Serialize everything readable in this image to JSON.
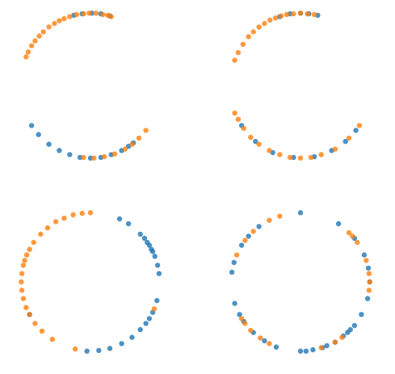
{
  "colors": {
    "blue": "#1f77b4",
    "orange": "#ff7f0e"
  },
  "chart_data": [
    {
      "type": "scatter",
      "panel": "top-left",
      "xlim": [
        -1.05,
        1.05
      ],
      "ylim": [
        -1.05,
        1.05
      ],
      "grid": false,
      "axes": "hidden",
      "series": [
        {
          "color": "blue",
          "x": [
            -0.24,
            -0.12,
            0.02,
            0.15,
            0.28
          ],
          "y": [
            0.97,
            0.99,
            1.0,
            0.99,
            0.96
          ]
        },
        {
          "color": "orange",
          "x": [
            -0.93,
            -0.9,
            -0.85,
            -0.8,
            -0.74,
            -0.68,
            -0.6,
            -0.52,
            -0.45,
            -0.38,
            -0.3,
            -0.2,
            -0.1,
            -0.02,
            0.08,
            0.18,
            0.25,
            0.3
          ],
          "y": [
            0.37,
            0.44,
            0.53,
            0.6,
            0.67,
            0.73,
            0.8,
            0.85,
            0.89,
            0.92,
            0.95,
            0.98,
            0.99,
            1.0,
            1.0,
            0.98,
            0.97,
            0.95
          ]
        }
      ]
    },
    {
      "type": "scatter",
      "panel": "top-right",
      "xlim": [
        -1.05,
        1.05
      ],
      "ylim": [
        -1.05,
        1.05
      ],
      "grid": false,
      "axes": "hidden",
      "series": [
        {
          "color": "blue",
          "x": [
            -0.3,
            -0.15,
            0.0,
            0.12,
            0.25
          ],
          "y": [
            0.95,
            0.99,
            1.0,
            0.99,
            0.97
          ]
        },
        {
          "color": "orange",
          "x": [
            -0.95,
            -0.9,
            -0.83,
            -0.75,
            -0.68,
            -0.6,
            -0.52,
            -0.44,
            -0.36,
            -0.28,
            -0.2,
            -0.1,
            0.0,
            0.1,
            0.2
          ],
          "y": [
            0.32,
            0.43,
            0.55,
            0.66,
            0.73,
            0.8,
            0.85,
            0.9,
            0.93,
            0.96,
            0.98,
            0.99,
            1.0,
            0.99,
            0.98
          ]
        }
      ]
    },
    {
      "type": "scatter",
      "panel": "middle-left",
      "xlim": [
        -1.05,
        1.05
      ],
      "ylim": [
        -1.05,
        1.05
      ],
      "grid": false,
      "axes": "hidden",
      "series": [
        {
          "color": "blue",
          "x": [
            -0.85,
            -0.75,
            -0.6,
            -0.45,
            -0.3,
            -0.15,
            0.0,
            0.15,
            0.3,
            0.45,
            0.55,
            0.62
          ],
          "y": [
            -0.53,
            -0.66,
            -0.8,
            -0.89,
            -0.95,
            -0.99,
            -1.0,
            -0.99,
            -0.95,
            -0.89,
            -0.83,
            -0.78
          ]
        },
        {
          "color": "orange",
          "x": [
            -0.1,
            0.05,
            0.2,
            0.35,
            0.5,
            0.6,
            0.7,
            0.8
          ],
          "y": [
            -0.99,
            -1.0,
            -0.98,
            -0.94,
            -0.87,
            -0.8,
            -0.71,
            -0.6
          ]
        }
      ]
    },
    {
      "type": "scatter",
      "panel": "middle-right",
      "xlim": [
        -1.05,
        1.05
      ],
      "ylim": [
        -1.05,
        1.05
      ],
      "grid": false,
      "axes": "hidden",
      "series": [
        {
          "color": "blue",
          "x": [
            -0.85,
            -0.65,
            -0.4,
            -0.1,
            0.2,
            0.45,
            0.65,
            0.8
          ],
          "y": [
            -0.53,
            -0.76,
            -0.92,
            -0.99,
            -0.98,
            -0.89,
            -0.76,
            -0.6
          ]
        },
        {
          "color": "orange",
          "x": [
            -0.95,
            -0.9,
            -0.82,
            -0.72,
            -0.6,
            -0.45,
            -0.3,
            -0.15,
            0.0,
            0.15,
            0.3,
            0.5,
            0.7,
            0.85
          ],
          "y": [
            -0.35,
            -0.44,
            -0.57,
            -0.7,
            -0.8,
            -0.89,
            -0.95,
            -0.99,
            -1.0,
            -0.99,
            -0.95,
            -0.87,
            -0.71,
            -0.53
          ]
        }
      ]
    },
    {
      "type": "scatter",
      "panel": "bottom-left",
      "xlim": [
        -1.05,
        1.05
      ],
      "ylim": [
        -1.05,
        1.05
      ],
      "grid": false,
      "axes": "hidden",
      "series": [
        {
          "color": "blue",
          "x": [
            0.42,
            0.55,
            0.72,
            0.78,
            0.82,
            0.85,
            0.88,
            0.9,
            0.93,
            0.97,
            0.99,
            0.96,
            0.9,
            0.85,
            0.8,
            0.72,
            0.6,
            0.45,
            0.28,
            0.12,
            -0.05,
            -0.88
          ],
          "y": [
            0.91,
            0.84,
            0.69,
            0.63,
            0.57,
            0.53,
            0.47,
            0.44,
            0.37,
            0.24,
            0.12,
            -0.27,
            -0.44,
            -0.53,
            -0.6,
            -0.69,
            -0.8,
            -0.89,
            -0.96,
            -0.99,
            -1.0,
            -0.47
          ]
        },
        {
          "color": "orange",
          "x": [
            0.0,
            -0.12,
            -0.25,
            -0.38,
            -0.5,
            -0.62,
            -0.72,
            -0.82,
            -0.88,
            -0.92,
            -0.95,
            -0.97,
            -0.99,
            -1.0,
            -0.99,
            -0.97,
            -0.93,
            -0.88,
            -0.8,
            -0.7,
            -0.55,
            -0.22,
            0.92
          ],
          "y": [
            1.0,
            0.99,
            0.97,
            0.92,
            0.87,
            0.78,
            0.69,
            0.57,
            0.47,
            0.39,
            0.31,
            0.24,
            0.12,
            0.0,
            -0.12,
            -0.24,
            -0.37,
            -0.47,
            -0.6,
            -0.71,
            -0.83,
            -0.97,
            -0.39
          ]
        }
      ]
    },
    {
      "type": "scatter",
      "panel": "bottom-right",
      "xlim": [
        -1.05,
        1.05
      ],
      "ylim": [
        -1.05,
        1.05
      ],
      "grid": false,
      "axes": "hidden",
      "series": [
        {
          "color": "blue",
          "x": [
            0.0,
            -0.6,
            -0.75,
            -0.85,
            -0.96,
            -0.99,
            -0.95,
            -0.88,
            -0.82,
            -0.68,
            -0.52,
            -0.35,
            0.0,
            0.08,
            0.18,
            0.32,
            0.5,
            0.62,
            0.68,
            0.72,
            0.78,
            0.88,
            0.97,
            1.0,
            0.98,
            0.92,
            0.78,
            0.55,
            0.38
          ],
          "y": [
            1.0,
            0.8,
            0.66,
            0.53,
            0.28,
            0.14,
            -0.31,
            -0.47,
            -0.57,
            -0.73,
            -0.85,
            -0.94,
            -1.0,
            -1.0,
            -0.98,
            -0.95,
            -0.87,
            -0.78,
            -0.73,
            -0.69,
            -0.63,
            -0.47,
            -0.24,
            0.0,
            0.2,
            0.39,
            0.63,
            0.84,
            -0.92
          ]
        },
        {
          "color": "orange",
          "x": [
            -0.3,
            -0.45,
            -0.68,
            -0.8,
            -0.92,
            -0.85,
            -0.8,
            -0.72,
            -0.58,
            -0.45,
            0.3,
            0.5,
            0.6,
            0.7,
            0.75,
            0.82,
            0.95,
            0.99,
            1.0,
            0.99
          ],
          "y": [
            0.95,
            0.89,
            0.73,
            0.6,
            0.39,
            -0.53,
            -0.6,
            -0.7,
            -0.81,
            -0.89,
            -0.95,
            -0.87,
            -0.8,
            0.71,
            0.66,
            0.57,
            0.31,
            0.12,
            0.0,
            -0.12
          ]
        }
      ]
    }
  ]
}
